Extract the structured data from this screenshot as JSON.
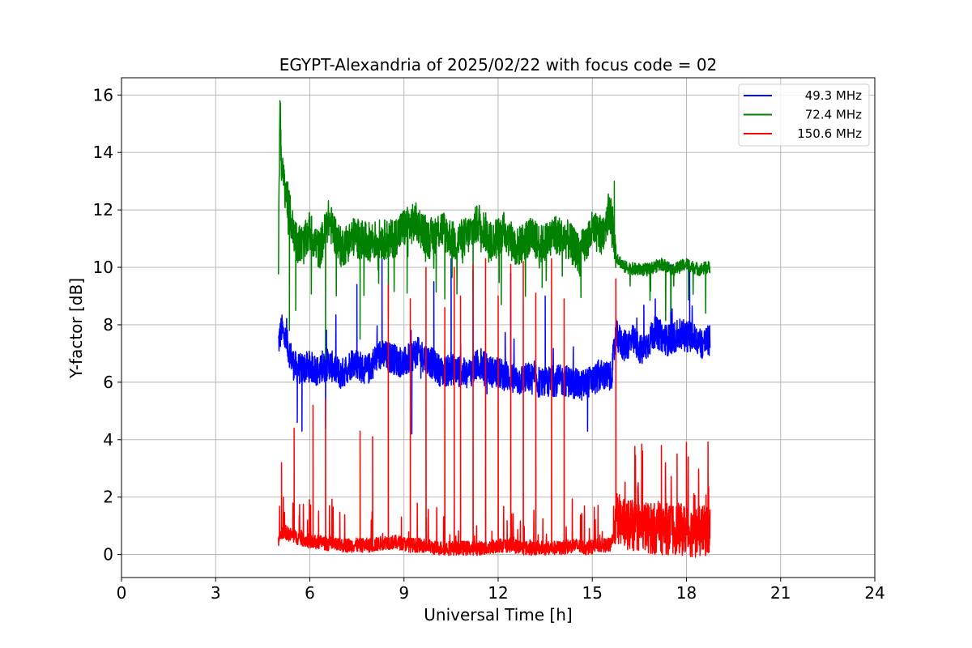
{
  "chart_data": {
    "type": "line",
    "title": "EGYPT-Alexandria of 2025/02/22 with focus code = 02",
    "xlabel": "Universal Time [h]",
    "ylabel": "Y-factor [dB]",
    "xlim": [
      0,
      24
    ],
    "ylim": [
      -0.8,
      16.6
    ],
    "xticks": [
      0,
      3,
      6,
      9,
      12,
      15,
      18,
      21,
      24
    ],
    "yticks": [
      0,
      2,
      4,
      6,
      8,
      10,
      12,
      14,
      16
    ],
    "grid": true,
    "legend_position": "top-right",
    "series": [
      {
        "name": "49.3 MHz",
        "color": "#0000ff",
        "x": [
          5.0,
          5.1,
          5.2,
          5.35,
          5.5,
          5.7,
          6.0,
          6.3,
          6.6,
          7.0,
          7.4,
          7.8,
          8.2,
          8.6,
          9.0,
          9.4,
          9.8,
          10.2,
          10.6,
          11.0,
          11.4,
          11.8,
          12.2,
          12.6,
          13.0,
          13.4,
          13.8,
          14.2,
          14.6,
          15.0,
          15.3,
          15.6,
          15.75,
          16.0,
          16.3,
          16.6,
          17.0,
          17.4,
          17.8,
          18.2,
          18.5,
          18.75
        ],
        "y": [
          7.3,
          7.8,
          7.5,
          7.0,
          6.5,
          6.4,
          6.5,
          6.3,
          6.6,
          6.2,
          6.7,
          6.3,
          6.9,
          6.8,
          6.6,
          7.0,
          6.7,
          6.3,
          6.4,
          6.2,
          6.6,
          6.3,
          6.2,
          6.0,
          6.1,
          5.9,
          6.0,
          6.0,
          5.8,
          6.0,
          6.2,
          6.1,
          7.6,
          7.2,
          7.4,
          7.0,
          7.7,
          7.4,
          7.6,
          7.5,
          7.3,
          7.4
        ],
        "spikes": [
          [
            5.6,
            4.6
          ],
          [
            5.75,
            4.3
          ],
          [
            6.5,
            4.4
          ],
          [
            7.5,
            9.4
          ],
          [
            8.3,
            10.3
          ],
          [
            9.25,
            4.2
          ],
          [
            9.95,
            9.5
          ],
          [
            10.5,
            10.3
          ],
          [
            11.2,
            9.9
          ],
          [
            12.4,
            9.8
          ],
          [
            13.5,
            9.0
          ],
          [
            14.85,
            4.3
          ],
          [
            15.7,
            7.4
          ],
          [
            17.5,
            10.1
          ],
          [
            18.1,
            9.9
          ]
        ]
      },
      {
        "name": "72.4 MHz",
        "color": "#008000",
        "x": [
          5.0,
          5.05,
          5.1,
          5.15,
          5.2,
          5.3,
          5.45,
          5.6,
          5.8,
          6.0,
          6.3,
          6.6,
          7.0,
          7.4,
          7.8,
          8.2,
          8.6,
          9.0,
          9.4,
          9.8,
          10.2,
          10.6,
          11.0,
          11.4,
          11.8,
          12.2,
          12.6,
          13.0,
          13.4,
          13.8,
          14.2,
          14.6,
          15.0,
          15.3,
          15.55,
          15.7,
          15.75,
          16.0,
          16.4,
          16.8,
          17.2,
          17.6,
          18.0,
          18.4,
          18.75
        ],
        "y": [
          10.2,
          15.8,
          13.4,
          13.0,
          12.8,
          12.2,
          11.3,
          10.8,
          10.7,
          11.2,
          10.5,
          11.6,
          10.6,
          11.0,
          10.8,
          10.9,
          10.9,
          11.3,
          11.5,
          10.9,
          11.3,
          10.8,
          11.0,
          11.5,
          10.8,
          11.2,
          10.6,
          11.0,
          10.7,
          11.1,
          10.9,
          10.4,
          11.2,
          11.0,
          12.0,
          11.0,
          10.4,
          10.0,
          9.9,
          9.9,
          10.1,
          9.9,
          10.1,
          9.9,
          10.0
        ],
        "spikes": [
          [
            5.35,
            7.8
          ],
          [
            5.55,
            8.5
          ],
          [
            6.5,
            6.8
          ],
          [
            7.6,
            7.5
          ],
          [
            8.5,
            8.2
          ],
          [
            9.1,
            9.1
          ],
          [
            10.3,
            8.9
          ],
          [
            11.2,
            9.1
          ],
          [
            12.1,
            8.7
          ],
          [
            13.4,
            9.3
          ],
          [
            14.6,
            9.7
          ],
          [
            15.7,
            13.0
          ]
        ]
      },
      {
        "name": "150.6 MHz",
        "color": "#ff0000",
        "x": [
          5.0,
          5.15,
          5.3,
          5.5,
          5.8,
          6.1,
          6.4,
          6.8,
          7.2,
          7.6,
          8.0,
          8.4,
          8.8,
          9.2,
          9.6,
          10.0,
          10.4,
          10.8,
          11.2,
          11.6,
          12.0,
          12.4,
          12.8,
          13.2,
          13.6,
          14.0,
          14.4,
          14.8,
          15.2,
          15.6,
          15.75,
          16.0,
          16.3,
          16.6,
          17.0,
          17.4,
          17.8,
          18.2,
          18.5,
          18.75
        ],
        "y": [
          0.5,
          0.8,
          0.7,
          0.6,
          0.5,
          0.4,
          0.4,
          0.3,
          0.3,
          0.3,
          0.3,
          0.4,
          0.4,
          0.3,
          0.3,
          0.2,
          0.2,
          0.2,
          0.2,
          0.2,
          0.3,
          0.3,
          0.2,
          0.2,
          0.2,
          0.2,
          0.3,
          0.2,
          0.3,
          0.3,
          1.2,
          1.0,
          0.9,
          0.9,
          0.8,
          0.8,
          0.8,
          0.7,
          0.7,
          0.8
        ],
        "spikes": [
          [
            5.1,
            3.2
          ],
          [
            5.5,
            4.4
          ],
          [
            6.1,
            5.2
          ],
          [
            6.5,
            5.4
          ],
          [
            7.6,
            4.3
          ],
          [
            8.0,
            4.1
          ],
          [
            8.5,
            9.4
          ],
          [
            9.2,
            8.9
          ],
          [
            9.7,
            10.0
          ],
          [
            10.3,
            8.6
          ],
          [
            10.6,
            10.0
          ],
          [
            10.8,
            9.0
          ],
          [
            11.2,
            10.1
          ],
          [
            11.6,
            10.3
          ],
          [
            12.0,
            9.0
          ],
          [
            12.4,
            10.1
          ],
          [
            12.8,
            10.2
          ],
          [
            13.2,
            9.1
          ],
          [
            13.7,
            10.3
          ],
          [
            14.1,
            8.9
          ],
          [
            15.75,
            9.6
          ],
          [
            16.6,
            3.6
          ],
          [
            17.2,
            3.8
          ],
          [
            17.7,
            3.5
          ],
          [
            18.0,
            3.9
          ]
        ]
      }
    ]
  }
}
